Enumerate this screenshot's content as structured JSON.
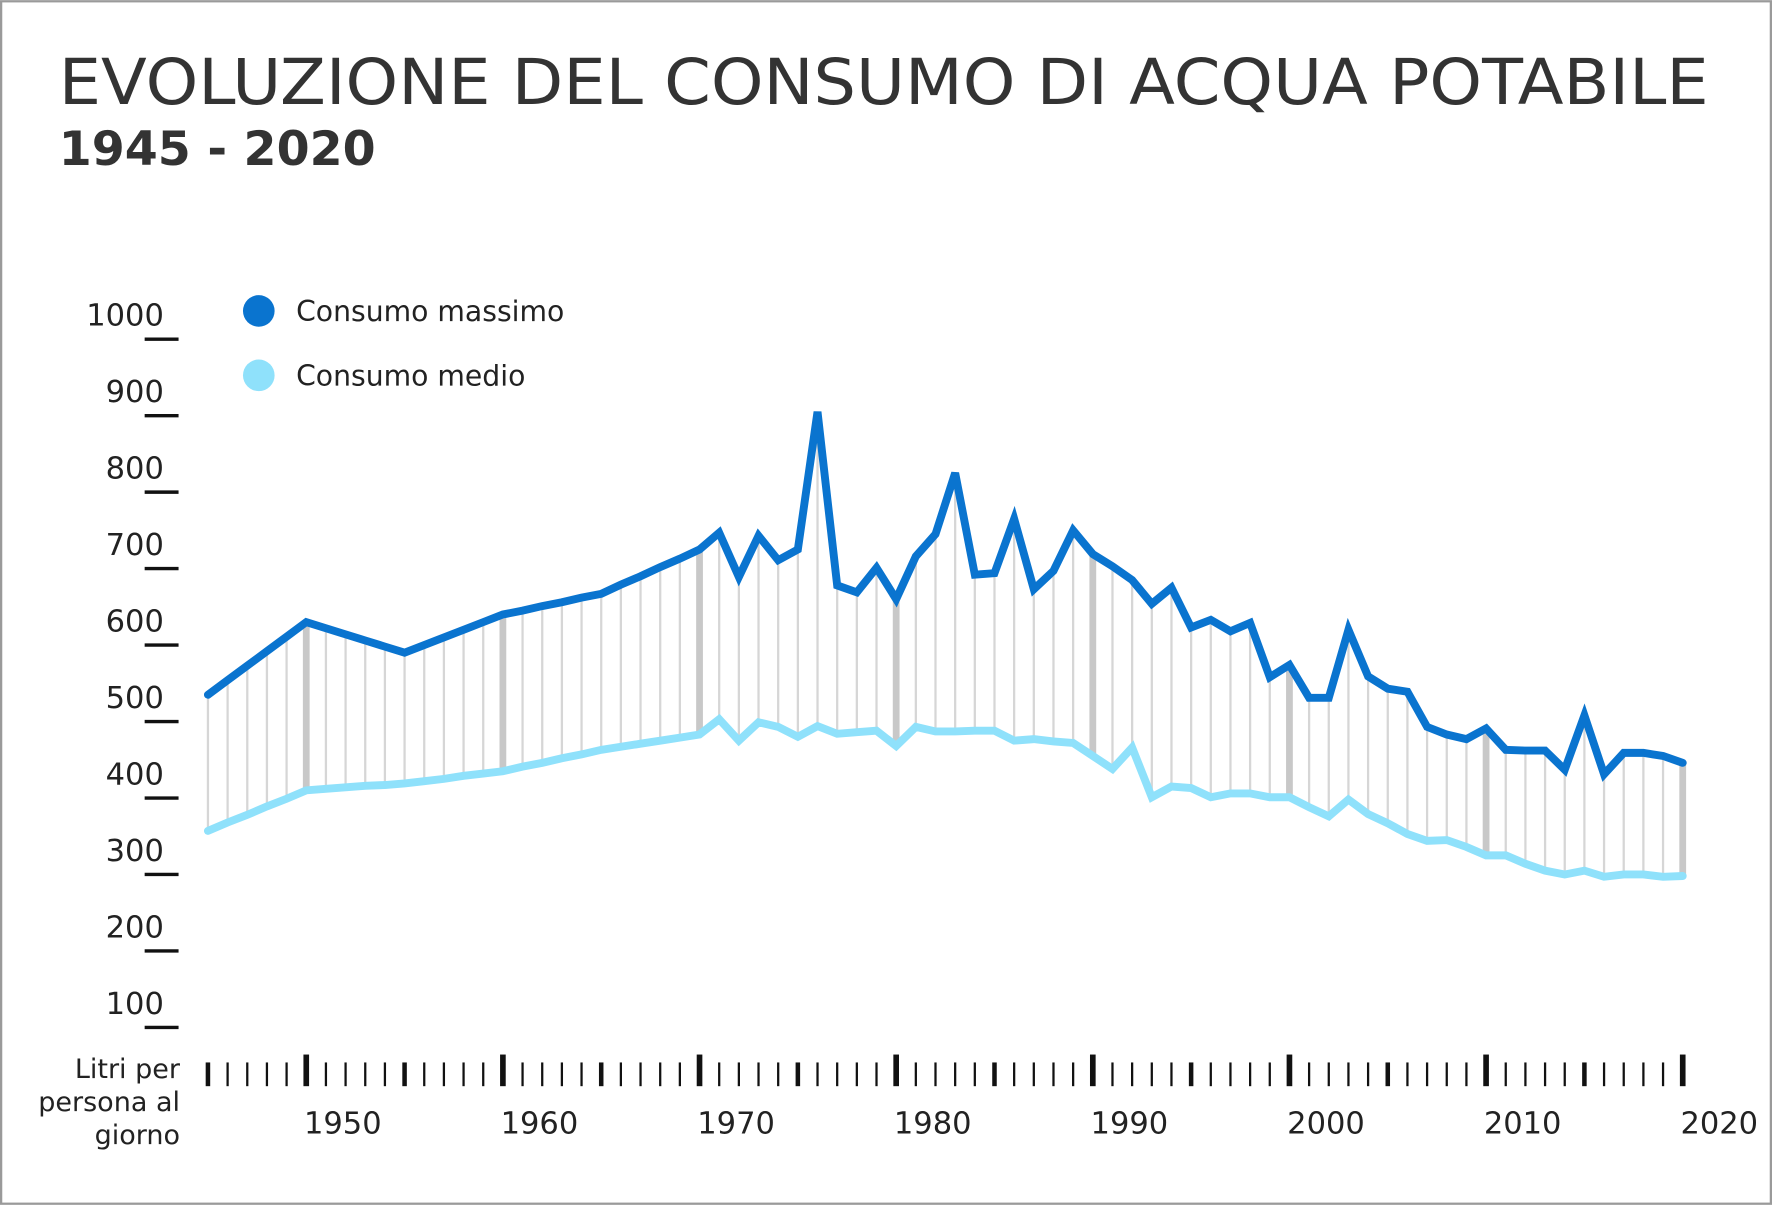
{
  "chart_data": {
    "type": "line",
    "title": "EVOLUZIONE DEL CONSUMO DI ACQUA POTABILE",
    "subtitle": "1945 - 2020",
    "y_label": "Litri per persona al giorno",
    "x": [
      1945,
      1946,
      1947,
      1948,
      1949,
      1950,
      1951,
      1952,
      1953,
      1954,
      1955,
      1956,
      1957,
      1958,
      1959,
      1960,
      1961,
      1962,
      1963,
      1964,
      1965,
      1966,
      1967,
      1968,
      1969,
      1970,
      1971,
      1972,
      1973,
      1974,
      1975,
      1976,
      1977,
      1978,
      1979,
      1980,
      1981,
      1982,
      1983,
      1984,
      1985,
      1986,
      1987,
      1988,
      1989,
      1990,
      1991,
      1992,
      1993,
      1994,
      1995,
      1996,
      1997,
      1998,
      1999,
      2000,
      2001,
      2002,
      2003,
      2004,
      2005,
      2006,
      2007,
      2008,
      2009,
      2010,
      2011,
      2012,
      2013,
      2014,
      2015,
      2016,
      2017,
      2018,
      2019,
      2020
    ],
    "series": [
      {
        "name": "Consumo massimo",
        "color": "#0a74cf",
        "values": [
          535,
          554,
          573,
          592,
          611,
          630,
          622,
          614,
          606,
          598,
          590,
          600,
          610,
          620,
          630,
          640,
          645,
          651,
          656,
          662,
          667,
          679,
          690,
          702,
          713,
          725,
          747,
          689,
          743,
          711,
          725,
          905,
          678,
          669,
          701,
          660,
          716,
          745,
          825,
          692,
          694,
          765,
          673,
          697,
          750,
          719,
          703,
          685,
          654,
          675,
          623,
          633,
          618,
          629,
          558,
          574,
          531,
          531,
          620,
          559,
          543,
          539,
          493,
          483,
          477,
          491,
          463,
          462,
          462,
          437,
          508,
          431,
          459,
          459,
          455,
          446
        ]
      },
      {
        "name": "Consumo medio",
        "color": "#8fe1fb",
        "values": [
          357,
          368,
          378,
          389,
          399,
          410,
          412,
          414,
          416,
          417,
          419,
          422,
          425,
          429,
          432,
          435,
          441,
          446,
          452,
          457,
          463,
          467,
          471,
          475,
          479,
          483,
          503,
          475,
          499,
          493,
          480,
          494,
          484,
          486,
          488,
          468,
          493,
          487,
          487,
          488,
          488,
          475,
          477,
          474,
          472,
          455,
          438,
          466,
          401,
          415,
          413,
          401,
          406,
          406,
          401,
          401,
          388,
          376,
          398,
          379,
          367,
          353,
          344,
          345,
          336,
          325,
          325,
          314,
          305,
          300,
          305,
          297,
          300,
          300,
          297,
          298
        ]
      }
    ],
    "xlim": [
      1945,
      2020
    ],
    "xticks": [
      1950,
      1960,
      1970,
      1980,
      1990,
      2000,
      2010,
      2020
    ],
    "ylim": [
      100,
      1000
    ],
    "yticks": [
      100,
      200,
      300,
      400,
      500,
      600,
      700,
      800,
      900,
      1000
    ],
    "grid": false,
    "legend": "top-left"
  }
}
